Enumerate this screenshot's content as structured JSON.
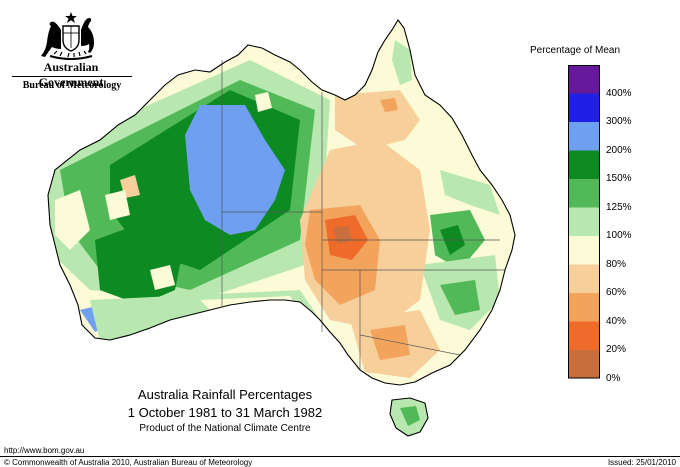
{
  "header": {
    "agency": "Australian Government",
    "bureau": "Bureau of Meteorology"
  },
  "legend": {
    "title": "Percentage of Mean",
    "bands": [
      {
        "label": "400%",
        "color": "#66199a"
      },
      {
        "label": "300%",
        "color": "#1f1fe6"
      },
      {
        "label": "200%",
        "color": "#6e9ff0"
      },
      {
        "label": "150%",
        "color": "#0e8a23"
      },
      {
        "label": "125%",
        "color": "#52b958"
      },
      {
        "label": "100%",
        "color": "#b8e8b0"
      },
      {
        "label": "80%",
        "color": "#fbfbd8"
      },
      {
        "label": "60%",
        "color": "#f7cf9a"
      },
      {
        "label": "40%",
        "color": "#f3a45c"
      },
      {
        "label": "20%",
        "color": "#ee6b2a"
      },
      {
        "label": "0%",
        "color": "#c86f3d"
      }
    ]
  },
  "map": {
    "title": "Australia Rainfall Percentages",
    "period": "1 October 1981 to 31 March 1982",
    "credit": "Product of the National Climate Centre",
    "region_colors": {
      "outline": "#000000",
      "state_border": "#555555"
    }
  },
  "footer": {
    "url": "http://www.bom.gov.au",
    "copyright": "© Commonwealth of Australia 2010, Australian Bureau of Meteorology",
    "issued": "Issued: 25/01/2010"
  }
}
